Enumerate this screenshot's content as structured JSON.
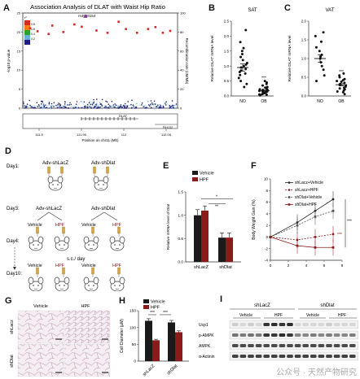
{
  "panel_labels": [
    "A",
    "B",
    "C",
    "D",
    "E",
    "F",
    "G",
    "H",
    "I"
  ],
  "panelA": {
    "title": "Association Analysis of DLAT with Waist Hip Ratio",
    "ylabel_left": "-log10 p-value",
    "ylabel_right": "Recombination rate (cM/Mb)",
    "xlabel": "Position on chr11 (Mb)",
    "xticks": [
      "111.9",
      "111.95",
      "112",
      "112.05"
    ],
    "yticks_left": [
      "0",
      "5",
      "10",
      "15",
      "20",
      "25"
    ],
    "yticks_right": [
      "0",
      "20",
      "40",
      "60",
      "80",
      "100"
    ],
    "snp_label": "rs4938154",
    "legend_title": "r²",
    "legend_values": [
      "0.8",
      "0.6",
      "0.4",
      "0.2"
    ],
    "genes": [
      "DLAT",
      "PIH1D2"
    ],
    "chart_data": {
      "type": "scatter",
      "xlim": [
        111.87,
        112.08
      ],
      "ylim": [
        0,
        25
      ],
      "highlight": {
        "x": 111.955,
        "y": 24.2,
        "label": "rs4938154"
      },
      "points_top": [
        {
          "x": 111.88,
          "y": 21.0
        },
        {
          "x": 111.89,
          "y": 20.2
        },
        {
          "x": 111.905,
          "y": 19.5
        },
        {
          "x": 111.91,
          "y": 21.7
        },
        {
          "x": 111.925,
          "y": 20.0
        },
        {
          "x": 111.94,
          "y": 22.0
        },
        {
          "x": 111.95,
          "y": 21.4
        },
        {
          "x": 111.97,
          "y": 20.4
        },
        {
          "x": 111.985,
          "y": 19.8
        },
        {
          "x": 112.0,
          "y": 22.7
        },
        {
          "x": 112.01,
          "y": 20.8
        },
        {
          "x": 112.025,
          "y": 19.8
        },
        {
          "x": 112.04,
          "y": 20.8
        },
        {
          "x": 112.05,
          "y": 21.3
        },
        {
          "x": 112.06,
          "y": 19.8
        },
        {
          "x": 112.07,
          "y": 20.3
        }
      ]
    }
  },
  "panelB": {
    "title": "SAT",
    "ylabel": "Relative DLAT mRNA level",
    "yticks": [
      "0.0",
      "0.5",
      "1.0",
      "1.5",
      "2.0",
      "2.5"
    ],
    "categories": [
      "NO",
      "OB"
    ],
    "sig": "***",
    "chart_data": {
      "type": "scatter",
      "ylim": [
        0,
        2.5
      ],
      "groups": [
        {
          "name": "NO",
          "mean": 0.95,
          "sem": 0.12,
          "values": [
            0.3,
            0.4,
            0.5,
            0.6,
            0.7,
            0.75,
            0.8,
            0.85,
            0.9,
            0.95,
            1.0,
            1.05,
            1.1,
            1.2,
            1.3,
            1.4,
            1.5,
            1.6,
            1.8,
            2.2
          ]
        },
        {
          "name": "OB",
          "mean": 0.18,
          "sem": 0.03,
          "values": [
            0.02,
            0.04,
            0.05,
            0.06,
            0.08,
            0.1,
            0.1,
            0.12,
            0.13,
            0.15,
            0.15,
            0.17,
            0.18,
            0.2,
            0.2,
            0.22,
            0.25,
            0.28,
            0.3,
            0.35,
            0.4,
            0.45,
            0.5
          ]
        }
      ]
    }
  },
  "panelC": {
    "title": "VAT",
    "ylabel": "Relative DLAT mRNA level",
    "yticks": [
      "0.0",
      "0.5",
      "1.0",
      "1.5",
      "2.0"
    ],
    "categories": [
      "NO",
      "OB"
    ],
    "sig": "***",
    "chart_data": {
      "type": "scatter",
      "ylim": [
        0,
        2.0
      ],
      "groups": [
        {
          "name": "NO",
          "mean": 1.0,
          "sem": 0.1,
          "values": [
            0.4,
            0.55,
            0.7,
            0.8,
            0.9,
            1.0,
            1.05,
            1.1,
            1.2,
            1.3,
            1.45,
            1.6,
            1.7
          ]
        },
        {
          "name": "OB",
          "mean": 0.3,
          "sem": 0.03,
          "values": [
            0.05,
            0.1,
            0.12,
            0.15,
            0.18,
            0.2,
            0.22,
            0.25,
            0.28,
            0.3,
            0.3,
            0.32,
            0.35,
            0.38,
            0.4,
            0.42,
            0.45,
            0.5,
            0.55,
            0.6
          ]
        }
      ]
    }
  },
  "panelD": {
    "day1": "Day1:",
    "day3": "Day3:",
    "day4": "Day4:",
    "day10": "Day10:",
    "adv_lacz": "Adv-shLacZ",
    "adv_dlat": "Adv-shDlat",
    "vehicle": "Vehicle",
    "hpf": "HPF",
    "sc": "s.c./ day"
  },
  "panelE": {
    "ylabel": "Relative mRNA level of Dlat",
    "yticks": [
      "0.0",
      "0.5",
      "1.0",
      "1.5"
    ],
    "categories": [
      "shLacZ",
      "shDlat"
    ],
    "sig_top": "*",
    "sig_mid": "**",
    "legend": [
      "Vehicle",
      "HPF"
    ],
    "colors": {
      "vehicle": "#1a1a1a",
      "hpf": "#8b1a1a"
    },
    "chart_data": {
      "type": "bar",
      "categories": [
        "shLacZ",
        "shDlat"
      ],
      "ylim": [
        0,
        1.5
      ],
      "series": [
        {
          "name": "Vehicle",
          "values": [
            1.0,
            0.52
          ],
          "err": [
            0.12,
            0.1
          ]
        },
        {
          "name": "HPF",
          "values": [
            1.1,
            0.52
          ],
          "err": [
            0.1,
            0.1
          ]
        }
      ]
    }
  },
  "panelF": {
    "ylabel": "Body Weight Gain (%)",
    "xticks": [
      "0",
      "2",
      "4",
      "6",
      "8"
    ],
    "yticks": [
      "-4",
      "-2",
      "0",
      "2",
      "4",
      "6",
      "8",
      "10"
    ],
    "legend": [
      "shLacz+Vehicle",
      "shLacz+HPF",
      "shDlat+Vehicle",
      "shDlat+HPF"
    ],
    "sig1": "***",
    "sig2": "***",
    "chart_data": {
      "type": "line",
      "x": [
        0,
        3,
        5,
        7
      ],
      "xlim": [
        0,
        8
      ],
      "ylim": [
        -4,
        10
      ],
      "series": [
        {
          "name": "shLacz+Vehicle",
          "values": [
            0,
            2.5,
            4.5,
            6.5
          ],
          "color": "#222222",
          "dash": false,
          "marker": "circle"
        },
        {
          "name": "shLacz+HPF",
          "values": [
            0,
            -0.5,
            0,
            0.5
          ],
          "color": "#8b1a1a",
          "dash": true,
          "marker": "circle"
        },
        {
          "name": "shDlat+Vehicle",
          "values": [
            0,
            2.0,
            3.5,
            4.5
          ],
          "color": "#555555",
          "dash": true,
          "marker": "square"
        },
        {
          "name": "shDlat+HPF",
          "values": [
            0,
            -1.5,
            -1.8,
            -1.8
          ],
          "color": "#8b1a1a",
          "dash": false,
          "marker": "square"
        }
      ]
    }
  },
  "panelG": {
    "col_vehicle": "Vehicle",
    "col_hpf": "HPF",
    "row_lacz": "shLacz",
    "row_dlat": "shDlat"
  },
  "panelH": {
    "ylabel": "Cell Diameter (μM)",
    "yticks": [
      "0",
      "50",
      "100",
      "150"
    ],
    "categories": [
      "shLacZ",
      "shDlat"
    ],
    "legend": [
      "Vehicle",
      "HPF"
    ],
    "sig1": "***",
    "sig2": "***",
    "chart_data": {
      "type": "bar",
      "categories": [
        "shLacZ",
        "shDlat"
      ],
      "ylim": [
        0,
        150
      ],
      "series": [
        {
          "name": "Vehicle",
          "values": [
            120,
            115
          ],
          "err": [
            6,
            6
          ]
        },
        {
          "name": "HPF",
          "values": [
            62,
            86
          ],
          "err": [
            3,
            4
          ]
        }
      ]
    }
  },
  "panelI": {
    "group_lacz": "shLacZ",
    "group_dlat": "shDlat",
    "vehicle": "Vehicle",
    "hpf": "HPF",
    "rows": [
      "Ucp1",
      "p-AMPK",
      "AMPK",
      "α-Actinin"
    ]
  },
  "watermark": "公众号 · 天然产物研究"
}
